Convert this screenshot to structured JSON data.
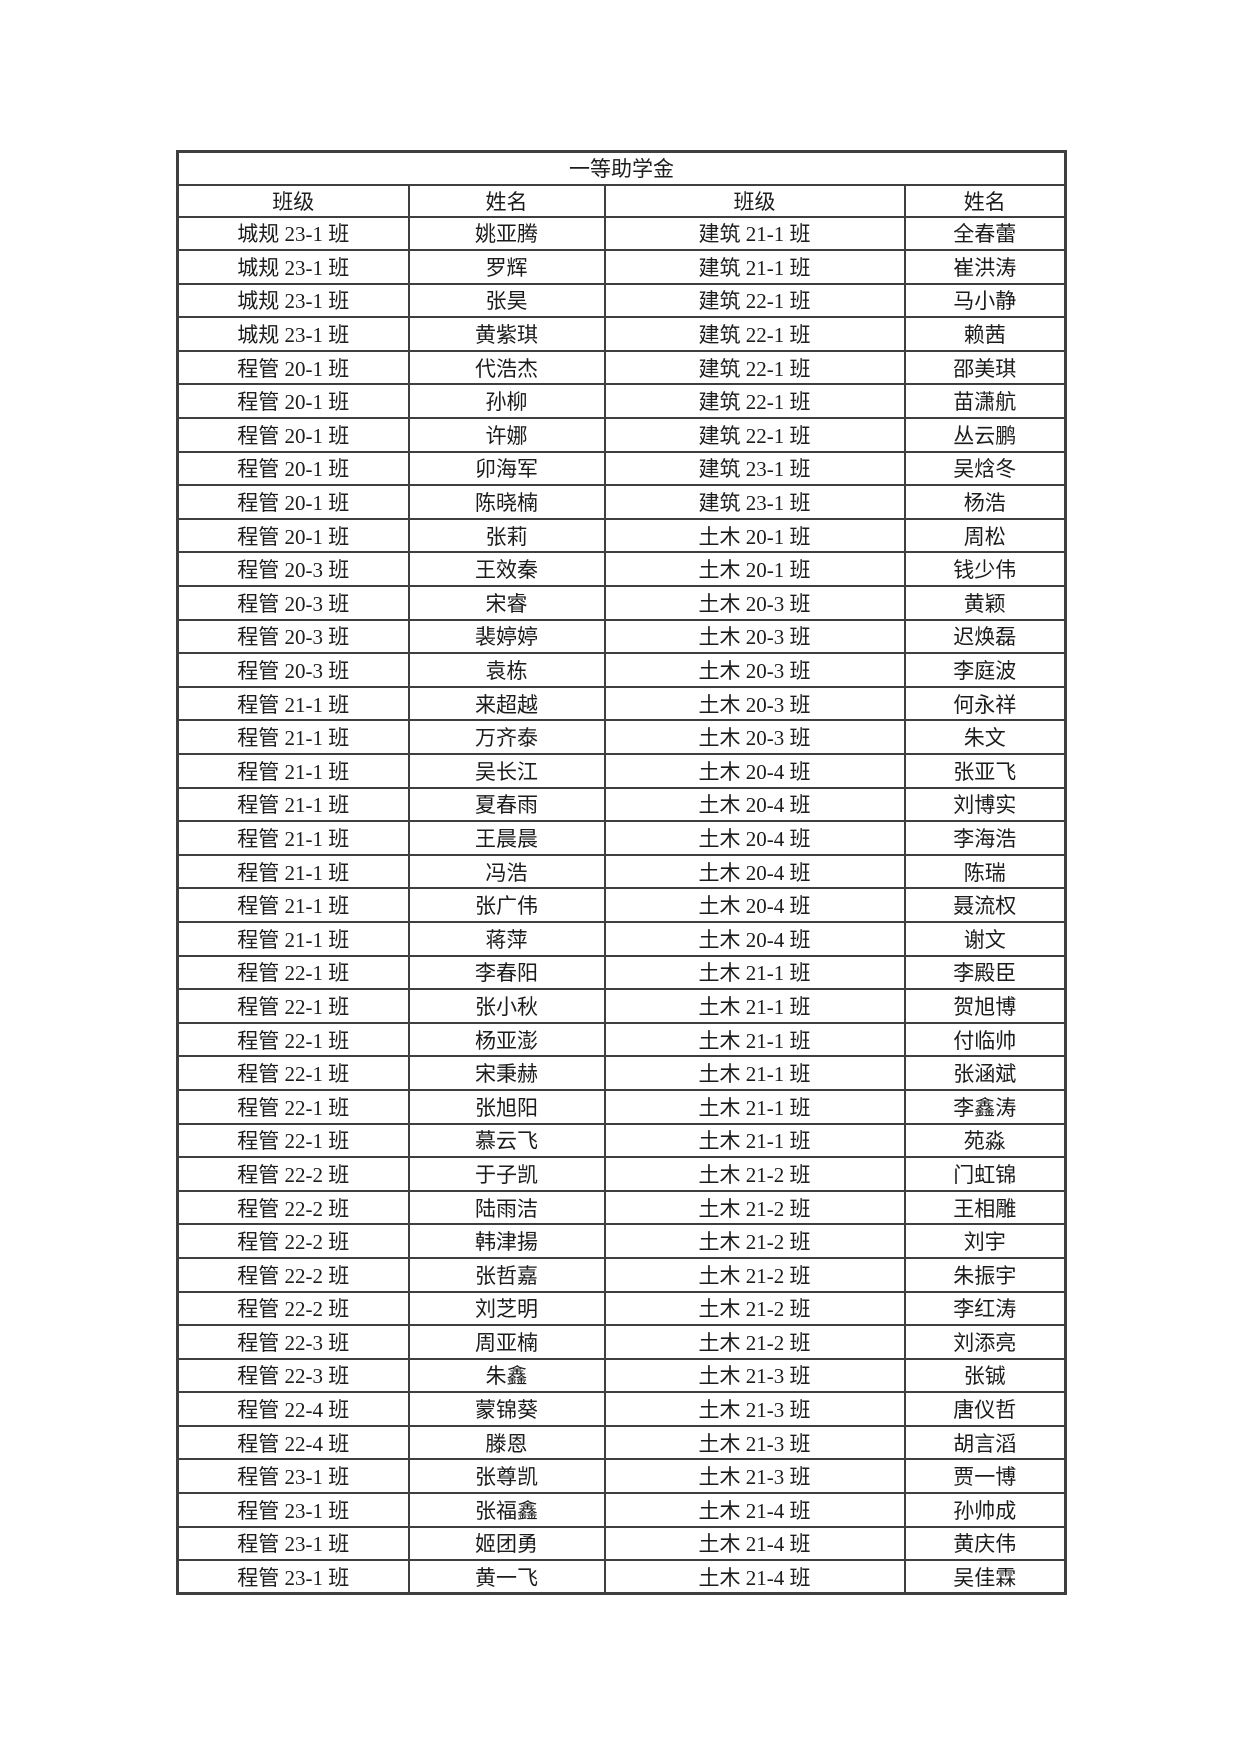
{
  "colors": {
    "border": "#3f3f3f",
    "text": "#1c1c1c",
    "page_background": "#ffffff"
  },
  "document": {
    "title": "一等助学金",
    "columns": [
      "班级",
      "姓名",
      "班级",
      "姓名"
    ],
    "rows": [
      [
        "城规 23-1 班",
        "姚亚腾",
        "建筑 21-1 班",
        "全春蕾"
      ],
      [
        "城规 23-1 班",
        "罗辉",
        "建筑 21-1 班",
        "崔洪涛"
      ],
      [
        "城规 23-1 班",
        "张昊",
        "建筑 22-1 班",
        "马小静"
      ],
      [
        "城规 23-1 班",
        "黄紫琪",
        "建筑 22-1 班",
        "赖茜"
      ],
      [
        "程管 20-1 班",
        "代浩杰",
        "建筑 22-1 班",
        "邵美琪"
      ],
      [
        "程管 20-1 班",
        "孙柳",
        "建筑 22-1 班",
        "苗潇航"
      ],
      [
        "程管 20-1 班",
        "许娜",
        "建筑 22-1 班",
        "丛云鹏"
      ],
      [
        "程管 20-1 班",
        "卯海军",
        "建筑 23-1 班",
        "吴焓冬"
      ],
      [
        "程管 20-1 班",
        "陈晓楠",
        "建筑 23-1 班",
        "杨浩"
      ],
      [
        "程管 20-1 班",
        "张莉",
        "土木 20-1 班",
        "周松"
      ],
      [
        "程管 20-3 班",
        "王效秦",
        "土木 20-1 班",
        "钱少伟"
      ],
      [
        "程管 20-3 班",
        "宋睿",
        "土木 20-3 班",
        "黄颖"
      ],
      [
        "程管 20-3 班",
        "裴婷婷",
        "土木 20-3 班",
        "迟焕磊"
      ],
      [
        "程管 20-3 班",
        "袁栋",
        "土木 20-3 班",
        "李庭波"
      ],
      [
        "程管 21-1 班",
        "来超越",
        "土木 20-3 班",
        "何永祥"
      ],
      [
        "程管 21-1 班",
        "万齐泰",
        "土木 20-3 班",
        "朱文"
      ],
      [
        "程管 21-1 班",
        "吴长江",
        "土木 20-4 班",
        "张亚飞"
      ],
      [
        "程管 21-1 班",
        "夏春雨",
        "土木 20-4 班",
        "刘博实"
      ],
      [
        "程管 21-1 班",
        "王晨晨",
        "土木 20-4 班",
        "李海浩"
      ],
      [
        "程管 21-1 班",
        "冯浩",
        "土木 20-4 班",
        "陈瑞"
      ],
      [
        "程管 21-1 班",
        "张广伟",
        "土木 20-4 班",
        "聂流权"
      ],
      [
        "程管 21-1 班",
        "蒋萍",
        "土木 20-4 班",
        "谢文"
      ],
      [
        "程管 22-1 班",
        "李春阳",
        "土木 21-1 班",
        "李殿臣"
      ],
      [
        "程管 22-1 班",
        "张小秋",
        "土木 21-1 班",
        "贺旭博"
      ],
      [
        "程管 22-1 班",
        "杨亚澎",
        "土木 21-1 班",
        "付临帅"
      ],
      [
        "程管 22-1 班",
        "宋秉赫",
        "土木 21-1 班",
        "张涵斌"
      ],
      [
        "程管 22-1 班",
        "张旭阳",
        "土木 21-1 班",
        "李鑫涛"
      ],
      [
        "程管 22-1 班",
        "慕云飞",
        "土木 21-1 班",
        "苑淼"
      ],
      [
        "程管 22-2 班",
        "于子凯",
        "土木 21-2 班",
        "门虹锦"
      ],
      [
        "程管 22-2 班",
        "陆雨洁",
        "土木 21-2 班",
        "王相雕"
      ],
      [
        "程管 22-2 班",
        "韩津揚",
        "土木 21-2 班",
        "刘宇"
      ],
      [
        "程管 22-2 班",
        "张哲嘉",
        "土木 21-2 班",
        "朱振宇"
      ],
      [
        "程管 22-2 班",
        "刘芝明",
        "土木 21-2 班",
        "李红涛"
      ],
      [
        "程管 22-3 班",
        "周亚楠",
        "土木 21-2 班",
        "刘添亮"
      ],
      [
        "程管 22-3 班",
        "朱鑫",
        "土木 21-3 班",
        "张铖"
      ],
      [
        "程管 22-4 班",
        "蒙锦葵",
        "土木 21-3 班",
        "唐仪哲"
      ],
      [
        "程管 22-4 班",
        "滕恩",
        "土木 21-3 班",
        "胡言滔"
      ],
      [
        "程管 23-1 班",
        "张尊凯",
        "土木 21-3 班",
        "贾一博"
      ],
      [
        "程管 23-1 班",
        "张福鑫",
        "土木 21-4 班",
        "孙帅成"
      ],
      [
        "程管 23-1 班",
        "姬团勇",
        "土木 21-4 班",
        "黄庆伟"
      ],
      [
        "程管 23-1 班",
        "黄一飞",
        "土木 21-4 班",
        "吴佳霖"
      ]
    ]
  }
}
